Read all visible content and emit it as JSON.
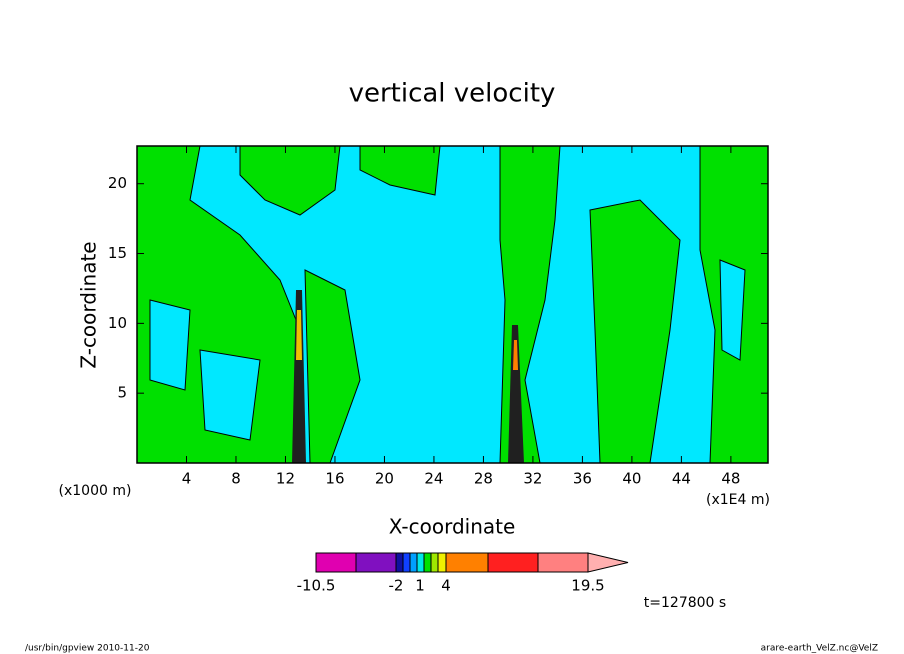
{
  "chart_data": {
    "type": "contour",
    "title": "vertical velocity",
    "x_label": "X-coordinate",
    "y_label": "Z-coordinate",
    "x_unit_left": "(x1000 m)",
    "x_unit_right": "(x1E4 m)",
    "xlim": [
      0,
      51
    ],
    "xticks": [
      4,
      8,
      12,
      16,
      20,
      24,
      28,
      32,
      36,
      40,
      44,
      48
    ],
    "ylim": [
      0,
      22.7
    ],
    "yticks": [
      5,
      10,
      15,
      20
    ],
    "colorbar": {
      "colors": [
        "#e000b0",
        "#8010c0",
        "#1010a0",
        "#1040ff",
        "#00a0ff",
        "#00e8e8",
        "#00e000",
        "#a0e800",
        "#f0f000",
        "#ff8000",
        "#ff2020",
        "#ff8080",
        "#ffb0b0"
      ],
      "ticks": [
        -10.5,
        -2,
        1,
        4,
        19.5
      ]
    },
    "time_label": "t=127800 s",
    "footer_left": "/usr/bin/gpview   2010-11-20",
    "footer_right": "arare-earth_VelZ.nc@VelZ"
  }
}
